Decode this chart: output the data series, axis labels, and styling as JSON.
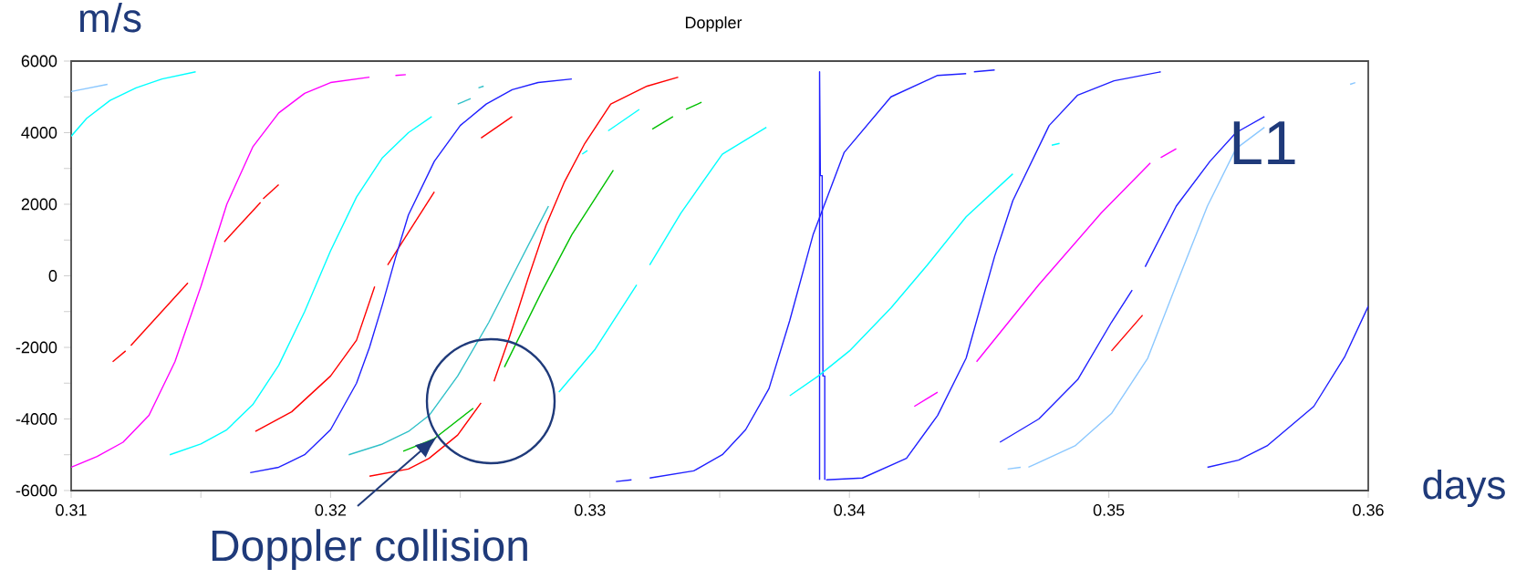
{
  "chart_data": {
    "type": "line",
    "title": "Doppler",
    "xlabel": "days",
    "ylabel": "m/s",
    "xlim": [
      0.31,
      0.36
    ],
    "xticks": [
      0.31,
      {
        "value": 0.315,
        "label": null
      },
      0.32,
      {
        "value": 0.325,
        "label": null
      },
      0.33,
      {
        "value": 0.335,
        "label": null
      },
      0.34,
      {
        "value": 0.345,
        "label": null
      },
      0.35,
      {
        "value": 0.355,
        "label": null
      },
      0.36
    ],
    "ylim": [
      -6000,
      6000
    ],
    "yticks": [
      -6000,
      {
        "value": -5000,
        "label": null
      },
      -4000,
      {
        "value": -3000,
        "label": null
      },
      -2000,
      {
        "value": -1000,
        "label": null
      },
      0,
      {
        "value": 1000,
        "label": null
      },
      2000,
      {
        "value": 3000,
        "label": null
      },
      4000,
      {
        "value": 5000,
        "label": null
      },
      6000
    ],
    "grid": false,
    "marker": "none",
    "line_style": "solid",
    "annotations": [
      "L1",
      {
        "text": "Doppler collision",
        "x": 0.3241,
        "y": -4500
      }
    ],
    "series": [
      {
        "color": "#8cc8ff",
        "x": [
          0.31,
          0.3114
        ],
        "values": [
          5150,
          5350
        ]
      },
      {
        "color": "#00ffff",
        "x": [
          0.31,
          0.3106,
          0.3115,
          0.3125,
          0.3135,
          0.3148
        ],
        "values": [
          3900,
          4400,
          4900,
          5250,
          5500,
          5700
        ]
      },
      {
        "color": "#ff00ff",
        "x": [
          0.31,
          0.311,
          0.312,
          0.313,
          0.314,
          0.315,
          0.316,
          0.317,
          0.318,
          0.319,
          0.32,
          0.3215
        ],
        "values": [
          -5350,
          -5050,
          -4650,
          -3900,
          -2400,
          -300,
          2000,
          3600,
          4550,
          5100,
          5400,
          5550
        ]
      },
      {
        "color": "#ff00ff",
        "x": [
          0.3225,
          0.3229
        ],
        "values": [
          5600,
          5620
        ]
      },
      {
        "color": "#ff0000",
        "x": [
          0.3116,
          0.3121
        ],
        "values": [
          -2400,
          -2100
        ]
      },
      {
        "color": "#ff0000",
        "x": [
          0.3123,
          0.3145
        ],
        "values": [
          -1950,
          -200
        ]
      },
      {
        "color": "#ff0000",
        "x": [
          0.3159,
          0.3173
        ],
        "values": [
          950,
          2050
        ]
      },
      {
        "color": "#ff0000",
        "x": [
          0.3174,
          0.318
        ],
        "values": [
          2150,
          2550
        ]
      },
      {
        "color": "#00ffff",
        "x": [
          0.3138,
          0.315,
          0.316,
          0.317,
          0.318,
          0.319,
          0.32,
          0.321,
          0.322,
          0.323,
          0.3239
        ],
        "values": [
          -5000,
          -4700,
          -4300,
          -3600,
          -2500,
          -1000,
          700,
          2200,
          3300,
          4000,
          4450
        ]
      },
      {
        "color": "#ff0000",
        "x": [
          0.3171,
          0.3185,
          0.32,
          0.321,
          0.3217
        ],
        "values": [
          -4350,
          -3800,
          -2800,
          -1800,
          -300
        ]
      },
      {
        "color": "#ff0000",
        "x": [
          0.3222,
          0.324
        ],
        "values": [
          300,
          2350
        ]
      },
      {
        "color": "#2020ff",
        "x": [
          0.3169,
          0.318,
          0.319,
          0.32,
          0.321,
          0.3215,
          0.322,
          0.3225,
          0.323,
          0.324,
          0.325,
          0.326,
          0.327,
          0.328,
          0.3293
        ],
        "values": [
          -5500,
          -5350,
          -5000,
          -4300,
          -3000,
          -2000,
          -800,
          500,
          1700,
          3200,
          4200,
          4800,
          5200,
          5400,
          5500
        ]
      },
      {
        "color": "#30c0c8",
        "x": [
          0.3207,
          0.322,
          0.323,
          0.3238,
          0.3249,
          0.3261,
          0.3273,
          0.3284
        ],
        "values": [
          -5000,
          -4700,
          -4350,
          -3900,
          -2800,
          -1300,
          400,
          1950
        ]
      },
      {
        "color": "#30c0c8",
        "x": [
          0.3249,
          0.3254
        ],
        "values": [
          4800,
          4950
        ]
      },
      {
        "color": "#30c0c8",
        "x": [
          0.3257,
          0.3259
        ],
        "values": [
          5250,
          5300
        ]
      },
      {
        "color": "#ff0000",
        "x": [
          0.3258,
          0.327
        ],
        "values": [
          3850,
          4450
        ]
      },
      {
        "color": "#00c000",
        "x": [
          0.3228,
          0.324,
          0.3255
        ],
        "values": [
          -4900,
          -4550,
          -3700
        ]
      },
      {
        "color": "#ff0000",
        "x": [
          0.3215,
          0.323,
          0.3238,
          0.3249,
          0.3258
        ],
        "values": [
          -5600,
          -5400,
          -5100,
          -4450,
          -3550
        ]
      },
      {
        "color": "#ff0000",
        "x": [
          0.3263,
          0.3269,
          0.3276,
          0.3283,
          0.329,
          0.3298,
          0.3308,
          0.3322,
          0.3334
        ],
        "values": [
          -2950,
          -1700,
          -100,
          1400,
          2600,
          3700,
          4800,
          5300,
          5550
        ]
      },
      {
        "color": "#00c000",
        "x": [
          0.3267,
          0.3281,
          0.3293,
          0.3309
        ],
        "values": [
          -2550,
          -500,
          1150,
          2950
        ]
      },
      {
        "color": "#00c000",
        "x": [
          0.3324,
          0.3332
        ],
        "values": [
          4100,
          4450
        ]
      },
      {
        "color": "#00c000",
        "x": [
          0.3337,
          0.3343
        ],
        "values": [
          4650,
          4850
        ]
      },
      {
        "color": "#00ffff",
        "x": [
          0.3307,
          0.3319
        ],
        "values": [
          4050,
          4650
        ]
      },
      {
        "color": "#00ffff",
        "x": [
          0.3297,
          0.3299
        ],
        "values": [
          3400,
          3500
        ]
      },
      {
        "color": "#00ffff",
        "x": [
          0.3288,
          0.3302,
          0.3318
        ],
        "values": [
          -3250,
          -2050,
          -250
        ]
      },
      {
        "color": "#00ffff",
        "x": [
          0.3323,
          0.3335,
          0.3351,
          0.3368
        ],
        "values": [
          300,
          1750,
          3400,
          4150
        ]
      },
      {
        "color": "#2020ff",
        "x": [
          0.331,
          0.3316
        ],
        "values": [
          -5750,
          -5700
        ]
      },
      {
        "color": "#2020ff",
        "x": [
          0.3323,
          0.334,
          0.3351,
          0.336,
          0.3369,
          0.3377,
          0.3386,
          0.3398,
          0.3416,
          0.3434,
          0.3445
        ],
        "values": [
          -5650,
          -5450,
          -5000,
          -4300,
          -3150,
          -1250,
          1150,
          3450,
          5000,
          5600,
          5650
        ]
      },
      {
        "color": "#2020ff",
        "x": [
          0.3448,
          0.3456
        ],
        "values": [
          5700,
          5750
        ]
      },
      {
        "color": "#2020ff",
        "x": [
          0.33885,
          0.33885,
          0.33888,
          0.33895,
          0.33898,
          0.33905,
          0.33905
        ],
        "values": [
          -5700,
          5700,
          2800,
          2800,
          -2800,
          -2800,
          -5700
        ]
      },
      {
        "color": "#2020ff",
        "x": [
          0.3391,
          0.3405,
          0.3422,
          0.3434,
          0.3445,
          0.3456,
          0.3463,
          0.3477,
          0.3488,
          0.3502,
          0.352
        ],
        "values": [
          -5700,
          -5650,
          -5100,
          -3900,
          -2300,
          550,
          2100,
          4200,
          5050,
          5450,
          5700
        ]
      },
      {
        "color": "#00ffff",
        "x": [
          0.3377,
          0.3388,
          0.34,
          0.3416,
          0.343,
          0.3445,
          0.3463
        ],
        "values": [
          -3350,
          -2800,
          -2100,
          -900,
          300,
          1650,
          2850
        ]
      },
      {
        "color": "#00ffff",
        "x": [
          0.3478,
          0.3481
        ],
        "values": [
          3650,
          3700
        ]
      },
      {
        "color": "#ff00ff",
        "x": [
          0.3425,
          0.3434
        ],
        "values": [
          -3650,
          -3250
        ]
      },
      {
        "color": "#ff00ff",
        "x": [
          0.3449,
          0.3473,
          0.3497,
          0.3516
        ],
        "values": [
          -2400,
          -250,
          1750,
          3150
        ]
      },
      {
        "color": "#ff00ff",
        "x": [
          0.352,
          0.3526
        ],
        "values": [
          3300,
          3550
        ]
      },
      {
        "color": "#2020ff",
        "x": [
          0.3458,
          0.3473,
          0.3488,
          0.3501,
          0.3509
        ],
        "values": [
          -4650,
          -4000,
          -2900,
          -1300,
          -400
        ]
      },
      {
        "color": "#2020ff",
        "x": [
          0.3514,
          0.3526,
          0.3539,
          0.3549,
          0.356
        ],
        "values": [
          250,
          1950,
          3200,
          4000,
          4450
        ]
      },
      {
        "color": "#ff0000",
        "x": [
          0.3501,
          0.3513
        ],
        "values": [
          -2100,
          -1100
        ]
      },
      {
        "color": "#8cc8ff",
        "x": [
          0.3461,
          0.3466
        ],
        "values": [
          -5400,
          -5350
        ]
      },
      {
        "color": "#8cc8ff",
        "x": [
          0.3469,
          0.3487,
          0.3501,
          0.3515,
          0.3526,
          0.3538,
          0.3549,
          0.356
        ],
        "values": [
          -5350,
          -4750,
          -3850,
          -2300,
          -250,
          1950,
          3550,
          4150
        ]
      },
      {
        "color": "#8cc8ff",
        "x": [
          0.3593,
          0.3595
        ],
        "values": [
          5350,
          5400
        ]
      },
      {
        "color": "#2020ff",
        "x": [
          0.3538,
          0.355,
          0.3561,
          0.3579,
          0.3591,
          0.36
        ],
        "values": [
          -5350,
          -5150,
          -4750,
          -3650,
          -2250,
          -850
        ]
      }
    ]
  }
}
